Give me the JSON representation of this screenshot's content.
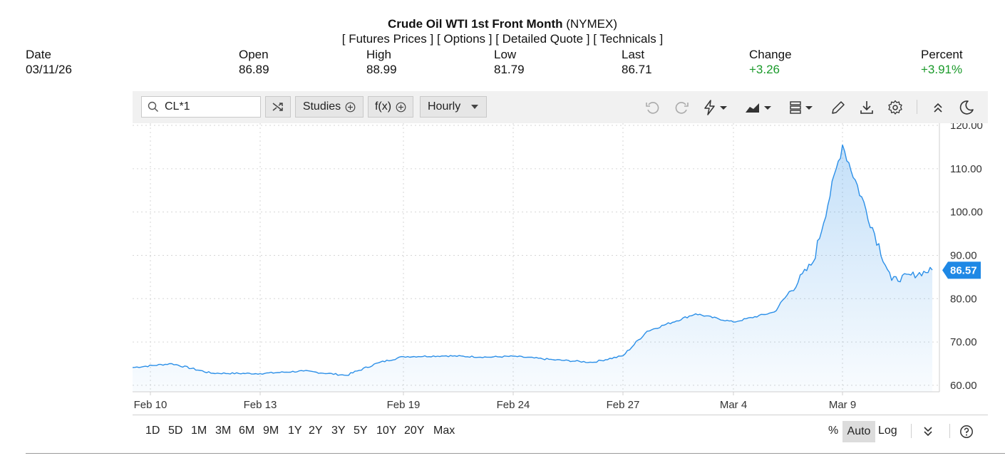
{
  "header": {
    "title_bold": "Crude Oil WTI 1st Front Month",
    "title_exchange": "(NYMEX)",
    "links": [
      "[ Futures Prices ]",
      "[ Options ]",
      "[ Detailed Quote ]",
      "[ Technicals ]"
    ]
  },
  "quote": {
    "date_label": "Date",
    "date_value": "03/11/26",
    "open_label": "Open",
    "open_value": "86.89",
    "high_label": "High",
    "high_value": "88.99",
    "low_label": "Low",
    "low_value": "81.79",
    "last_label": "Last",
    "last_value": "86.71",
    "change_label": "Change",
    "change_value": "+3.26",
    "percent_label": "Percent",
    "percent_value": "+3.91%"
  },
  "toolbar": {
    "symbol": "CL*1",
    "studies_label": "Studies",
    "fx_label": "f(x)",
    "interval_label": "Hourly"
  },
  "ranges": [
    "1D",
    "5D",
    "1M",
    "3M",
    "6M",
    "9M",
    "1Y",
    "2Y",
    "3Y",
    "5Y",
    "10Y",
    "20Y",
    "Max"
  ],
  "scale": {
    "percent": "%",
    "auto": "Auto",
    "log": "Log"
  },
  "colors": {
    "line": "#2b8fe8",
    "price_badge": "#1e88e5",
    "positive": "#1a9a2a"
  },
  "chart_data": {
    "type": "area",
    "y_ticks": [
      "120.00",
      "110.00",
      "100.00",
      "90.00",
      "80.00",
      "70.00",
      "60.00"
    ],
    "ylim": [
      58.5,
      120.5
    ],
    "x_labels": [
      "Feb 10",
      "Feb 13",
      "Feb 19",
      "Feb 24",
      "Feb 27",
      "Mar 4",
      "Mar 9"
    ],
    "current_price": "86.57",
    "series": [
      {
        "x": [
          "Feb 10",
          "Feb 11",
          "Feb 12",
          "Feb 13",
          "Feb 16",
          "Feb 17",
          "Feb 18",
          "Feb 19",
          "Feb 20",
          "Feb 23",
          "Feb 24",
          "Feb 25",
          "Feb 26",
          "Feb 27",
          "Mar 2",
          "Mar 3",
          "Mar 4",
          "Mar 5",
          "Mar 6",
          "Mar 9",
          "Mar 10",
          "Mar 11"
        ],
        "values": [
          64.1,
          65.0,
          62.8,
          62.7,
          63.3,
          62.3,
          65.2,
          66.6,
          66.8,
          66.5,
          66.7,
          65.9,
          65.3,
          66.8,
          72.5,
          76.5,
          74.6,
          76.9,
          88.5,
          115.5,
          84.2,
          86.6
        ]
      }
    ]
  }
}
